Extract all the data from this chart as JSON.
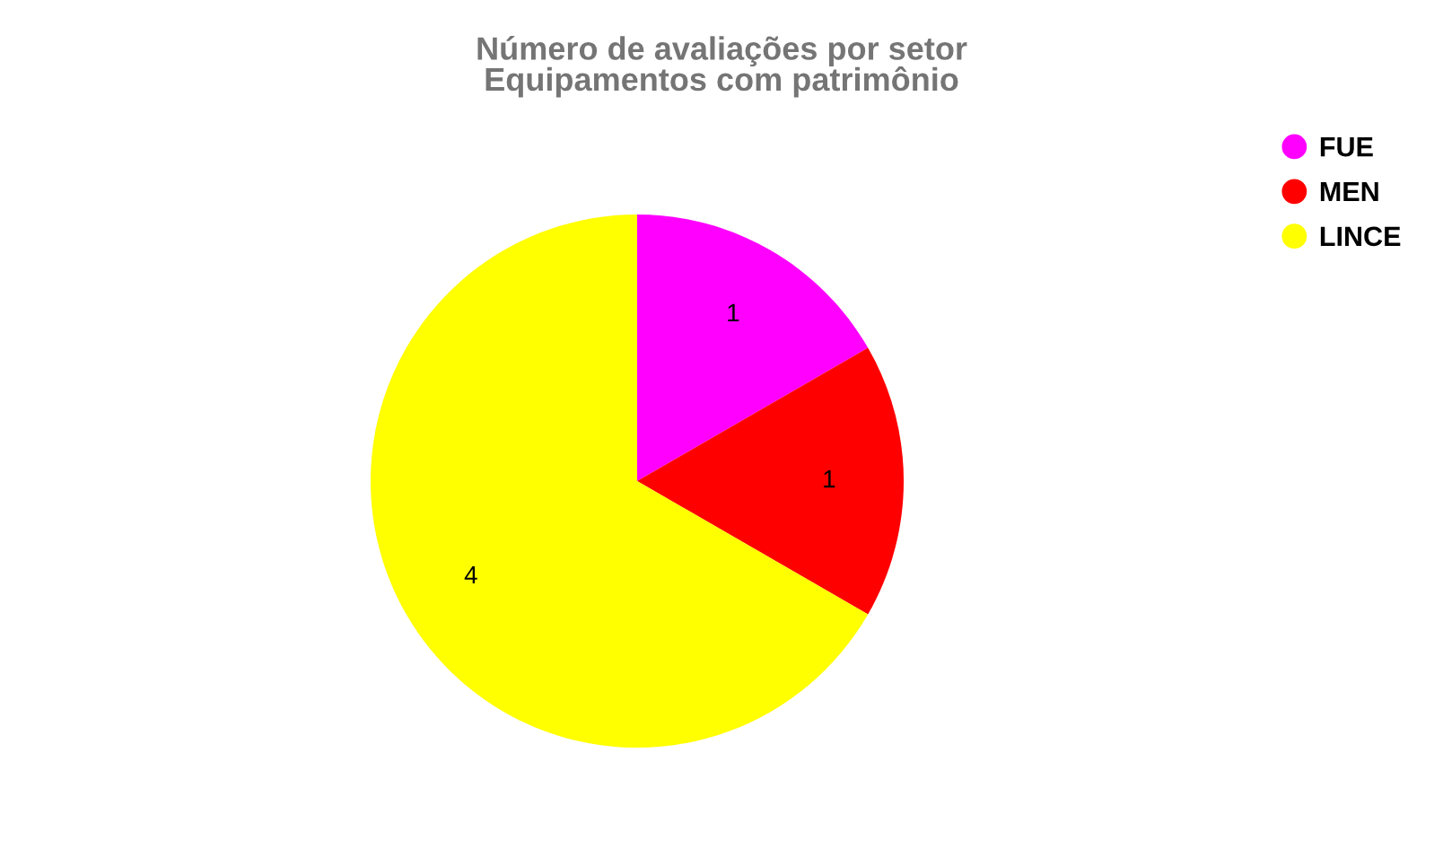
{
  "chart_data": {
    "type": "pie",
    "title": "Número de avaliações por setor\nEquipamentos com patrimônio",
    "categories": [
      "FUE",
      "MEN",
      "LINCE"
    ],
    "values": [
      1,
      1,
      4
    ],
    "colors": [
      "#ff00ff",
      "#ff0000",
      "#ffff00"
    ],
    "data_labels": true,
    "legend": "top right"
  }
}
